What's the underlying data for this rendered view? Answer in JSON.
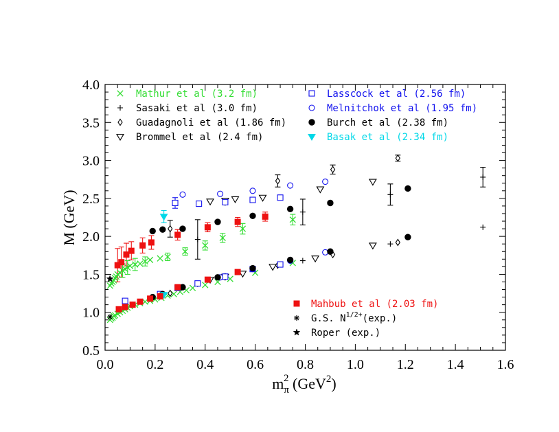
{
  "chart_data": {
    "type": "scatter",
    "xlabel": {
      "base": "m",
      "sub": "π",
      "sup": "2",
      "unit_open": " (GeV",
      "unit_sup": "2",
      "unit_close": ")"
    },
    "ylabel": "M (GeV)",
    "xlim": [
      0.0,
      1.6
    ],
    "ylim": [
      0.5,
      4.0
    ],
    "xticks": [
      "0.0",
      "0.2",
      "0.4",
      "0.6",
      "0.8",
      "1.0",
      "1.2",
      "1.4",
      "1.6"
    ],
    "yticks": [
      "0.5",
      "1.0",
      "1.5",
      "2.0",
      "2.5",
      "3.0",
      "3.5",
      "4.0"
    ],
    "series": [
      {
        "name": "Mathur et al (3.2 fm)",
        "color": "#33dd33",
        "marker": "x",
        "points": [
          [
            0.02,
            0.9
          ],
          [
            0.025,
            0.92
          ],
          [
            0.03,
            0.93
          ],
          [
            0.035,
            0.95
          ],
          [
            0.04,
            0.96
          ],
          [
            0.05,
            0.98
          ],
          [
            0.06,
            1.0
          ],
          [
            0.07,
            1.02
          ],
          [
            0.08,
            1.04
          ],
          [
            0.09,
            1.06
          ],
          [
            0.1,
            1.08
          ],
          [
            0.12,
            1.1
          ],
          [
            0.14,
            1.12
          ],
          [
            0.16,
            1.14
          ],
          [
            0.18,
            1.15
          ],
          [
            0.2,
            1.17
          ],
          [
            0.225,
            1.19
          ],
          [
            0.25,
            1.22
          ],
          [
            0.275,
            1.24
          ],
          [
            0.3,
            1.27
          ],
          [
            0.325,
            1.29
          ],
          [
            0.35,
            1.32
          ],
          [
            0.4,
            1.36
          ],
          [
            0.45,
            1.4
          ],
          [
            0.5,
            1.44
          ],
          [
            0.6,
            1.52
          ],
          [
            0.75,
            1.65
          ],
          [
            0.02,
            1.35
          ],
          [
            0.025,
            1.38
          ],
          [
            0.03,
            1.4
          ],
          [
            0.035,
            1.42
          ],
          [
            0.04,
            1.45
          ],
          [
            0.045,
            1.47
          ],
          [
            0.05,
            1.5
          ],
          [
            0.06,
            1.52
          ],
          [
            0.07,
            1.55
          ],
          [
            0.08,
            1.57
          ],
          [
            0.09,
            1.59
          ],
          [
            0.1,
            1.61
          ],
          [
            0.12,
            1.63
          ],
          [
            0.14,
            1.64
          ],
          [
            0.16,
            1.67
          ],
          [
            0.18,
            1.69
          ],
          [
            0.22,
            1.71
          ],
          [
            0.25,
            1.73
          ],
          [
            0.32,
            1.8
          ],
          [
            0.4,
            1.88
          ],
          [
            0.47,
            1.98
          ],
          [
            0.55,
            2.1
          ],
          [
            0.75,
            2.22
          ]
        ]
      },
      {
        "name": "Sasaki et al (3.0 fm)",
        "color": "#000000",
        "marker": "plus",
        "points": [
          [
            0.37,
            1.96
          ],
          [
            0.79,
            2.32
          ],
          [
            1.14,
            2.55
          ],
          [
            1.51,
            2.78
          ],
          [
            0.37,
            1.37
          ],
          [
            0.79,
            1.68
          ],
          [
            1.14,
            1.9
          ],
          [
            1.51,
            2.12
          ]
        ]
      },
      {
        "name": "Guadagnoli et al (1.86 fm)",
        "color": "#000000",
        "marker": "diamond",
        "points": [
          [
            0.26,
            2.1
          ],
          [
            0.48,
            2.45
          ],
          [
            0.69,
            2.73
          ],
          [
            0.91,
            2.88
          ],
          [
            1.17,
            3.03
          ],
          [
            0.26,
            1.25
          ],
          [
            0.48,
            1.47
          ],
          [
            0.69,
            1.62
          ],
          [
            0.91,
            1.76
          ],
          [
            1.17,
            1.92
          ]
        ]
      },
      {
        "name": "Brommel et al (2.4 fm)",
        "color": "#000000",
        "marker": "tri-down",
        "points": [
          [
            0.42,
            2.46
          ],
          [
            0.48,
            2.47
          ],
          [
            0.52,
            2.49
          ],
          [
            0.63,
            2.51
          ],
          [
            0.86,
            2.62
          ],
          [
            1.07,
            2.72
          ],
          [
            0.42,
            1.43
          ],
          [
            0.48,
            1.47
          ],
          [
            0.55,
            1.51
          ],
          [
            0.67,
            1.6
          ],
          [
            0.84,
            1.71
          ],
          [
            1.07,
            1.88
          ]
        ]
      },
      {
        "name": "Lasscock et al (2.56 fm)",
        "color": "#1111ee",
        "marker": "square-open",
        "points": [
          [
            0.28,
            2.44
          ],
          [
            0.375,
            2.43
          ],
          [
            0.48,
            2.45
          ],
          [
            0.59,
            2.48
          ],
          [
            0.7,
            2.51
          ],
          [
            0.08,
            1.15
          ],
          [
            0.22,
            1.24
          ],
          [
            0.29,
            1.32
          ],
          [
            0.37,
            1.38
          ],
          [
            0.48,
            1.47
          ],
          [
            0.59,
            1.57
          ],
          [
            0.7,
            1.63
          ]
        ]
      },
      {
        "name": "Melnitchok et al (1.95 fm)",
        "color": "#1111ee",
        "marker": "circle-open",
        "points": [
          [
            0.31,
            2.55
          ],
          [
            0.46,
            2.56
          ],
          [
            0.59,
            2.6
          ],
          [
            0.74,
            2.67
          ],
          [
            0.88,
            2.72
          ],
          [
            0.31,
            1.33
          ],
          [
            0.46,
            1.46
          ],
          [
            0.59,
            1.57
          ],
          [
            0.74,
            1.68
          ],
          [
            0.88,
            1.79
          ]
        ]
      },
      {
        "name": "Burch et al (2.38 fm)",
        "color": "#000000",
        "marker": "circle-filled",
        "points": [
          [
            0.19,
            2.07
          ],
          [
            0.23,
            2.09
          ],
          [
            0.31,
            2.1
          ],
          [
            0.45,
            2.19
          ],
          [
            0.59,
            2.27
          ],
          [
            0.74,
            2.36
          ],
          [
            0.9,
            2.44
          ],
          [
            1.21,
            2.63
          ],
          [
            0.19,
            1.2
          ],
          [
            0.23,
            1.24
          ],
          [
            0.31,
            1.33
          ],
          [
            0.45,
            1.46
          ],
          [
            0.59,
            1.58
          ],
          [
            0.74,
            1.69
          ],
          [
            0.9,
            1.8
          ],
          [
            1.21,
            1.99
          ]
        ]
      },
      {
        "name": "Basak et al (2.34 fm)",
        "color": "#00d8e8",
        "marker": "tri-down-filled",
        "points": [
          [
            0.235,
            2.26
          ],
          [
            0.235,
            1.23
          ]
        ]
      },
      {
        "name": "Mahbub et al (2.03 fm)",
        "color": "#ee1111",
        "marker": "square-filled",
        "points": [
          [
            0.05,
            1.62
          ],
          [
            0.065,
            1.66
          ],
          [
            0.085,
            1.76
          ],
          [
            0.105,
            1.81
          ],
          [
            0.15,
            1.88
          ],
          [
            0.185,
            1.92
          ],
          [
            0.29,
            2.02
          ],
          [
            0.41,
            2.12
          ],
          [
            0.53,
            2.19
          ],
          [
            0.64,
            2.26
          ],
          [
            0.055,
            1.04
          ],
          [
            0.08,
            1.07
          ],
          [
            0.11,
            1.1
          ],
          [
            0.14,
            1.14
          ],
          [
            0.18,
            1.18
          ],
          [
            0.22,
            1.21
          ],
          [
            0.29,
            1.33
          ],
          [
            0.41,
            1.43
          ],
          [
            0.53,
            1.53
          ]
        ]
      },
      {
        "name": "G.S. N",
        "name_sup": "1/2+",
        "name_tail": "(exp.)",
        "color": "#000000",
        "marker": "asterisk",
        "points": [
          [
            0.0195,
            0.94
          ]
        ]
      },
      {
        "name": "Roper (exp.)",
        "color": "#000000",
        "marker": "star",
        "points": [
          [
            0.0195,
            1.44
          ]
        ]
      }
    ],
    "error_bars": [
      [
        0.37,
        1.96,
        0.26
      ],
      [
        0.79,
        2.32,
        0.17
      ],
      [
        1.14,
        2.55,
        0.14
      ],
      [
        1.51,
        2.78,
        0.13
      ],
      [
        0.26,
        2.1,
        0.11
      ],
      [
        0.69,
        2.73,
        0.08
      ],
      [
        0.91,
        2.88,
        0.06
      ],
      [
        1.17,
        3.03,
        0.04
      ],
      [
        0.28,
        2.44,
        0.07
      ],
      [
        0.235,
        2.26,
        0.08
      ],
      [
        0.05,
        1.62,
        0.22
      ],
      [
        0.065,
        1.66,
        0.2
      ],
      [
        0.085,
        1.76,
        0.15
      ],
      [
        0.105,
        1.81,
        0.12
      ],
      [
        0.15,
        1.88,
        0.1
      ],
      [
        0.185,
        1.92,
        0.09
      ],
      [
        0.29,
        2.02,
        0.07
      ],
      [
        0.41,
        2.12,
        0.06
      ],
      [
        0.53,
        2.19,
        0.06
      ],
      [
        0.64,
        2.26,
        0.06
      ],
      [
        0.07,
        1.55,
        0.09
      ],
      [
        0.09,
        1.59,
        0.09
      ],
      [
        0.12,
        1.63,
        0.08
      ],
      [
        0.16,
        1.67,
        0.06
      ],
      [
        0.25,
        1.73,
        0.05
      ],
      [
        0.32,
        1.8,
        0.05
      ],
      [
        0.4,
        1.88,
        0.06
      ],
      [
        0.47,
        1.98,
        0.06
      ],
      [
        0.55,
        2.1,
        0.07
      ],
      [
        0.75,
        2.22,
        0.07
      ]
    ],
    "legend": {
      "left": [
        "Mathur et al (3.2 fm)",
        "Sasaki et al (3.0 fm)",
        "Guadagnoli et al (1.86 fm)",
        "Brommel et al (2.4 fm)"
      ],
      "right": [
        "Lasscock et al (2.56 fm)",
        "Melnitchok et al (1.95 fm)",
        "Burch et al (2.38 fm)",
        "Basak et al (2.34 fm)"
      ],
      "bottom": [
        "Mahbub et al (2.03 fm)",
        "G.S. N",
        "Roper (exp.)"
      ]
    },
    "grid": false
  }
}
